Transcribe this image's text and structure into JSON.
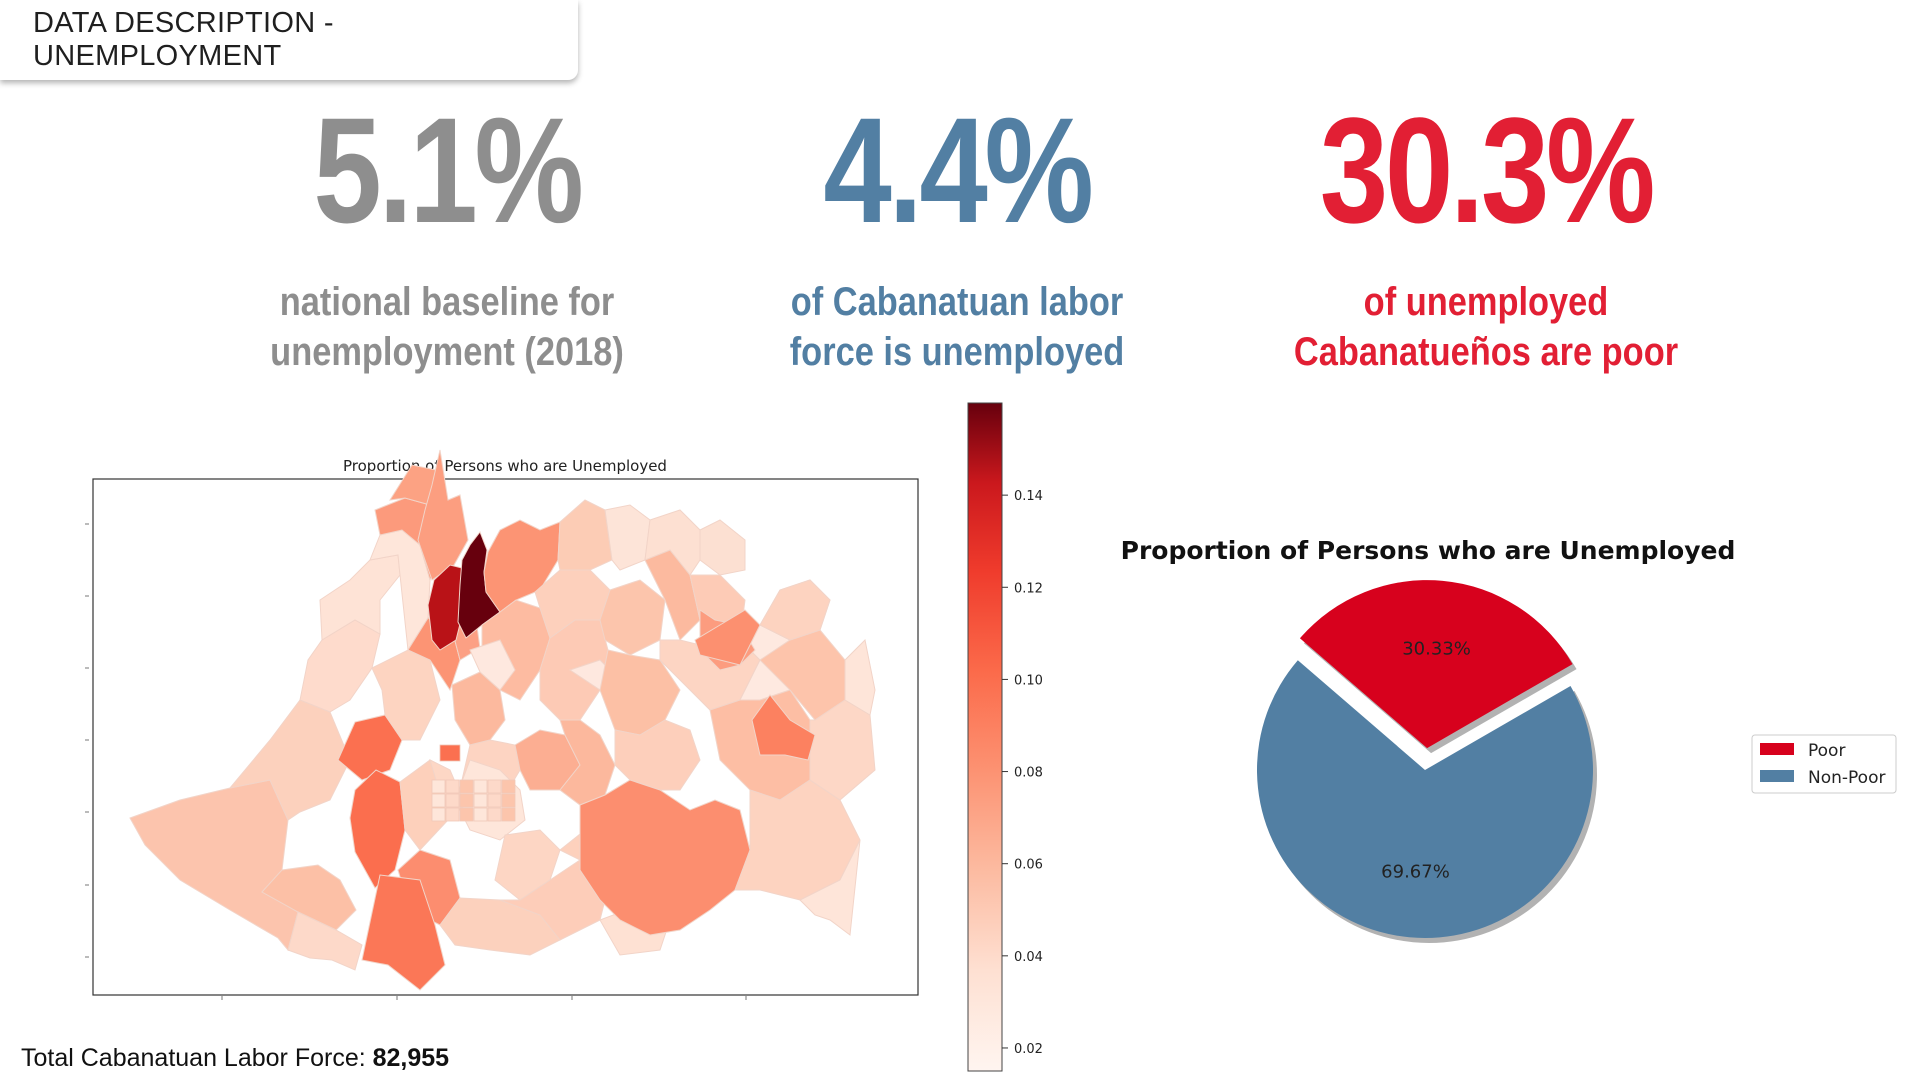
{
  "header": {
    "title": "DATA DESCRIPTION - UNEMPLOYMENT"
  },
  "stats": [
    {
      "value": "5.1%",
      "line1": "national baseline for",
      "line2": "unemployment (2018)",
      "color": "#8e8e8e"
    },
    {
      "value": "4.4%",
      "line1": "of Cabanatuan labor",
      "line2": "force is unemployed",
      "color": "#527fa3"
    },
    {
      "value": "30.3%",
      "line1": "of unemployed",
      "line2": "Cabanatueños are poor",
      "color": "#e21f34"
    }
  ],
  "footer": {
    "label": "Total Cabanatuan Labor Force: ",
    "value": "82,955"
  },
  "chart_data": [
    {
      "type": "heatmap",
      "title": "Proportion of Persons who are Unemployed",
      "colormap": "Reds",
      "colorbar": {
        "min": 0.015,
        "max": 0.16,
        "ticks": [
          "0.02",
          "0.04",
          "0.06",
          "0.08",
          "0.10",
          "0.12",
          "0.14"
        ]
      }
    },
    {
      "type": "pie",
      "title": "Proportion of Persons who are Unemployed",
      "slices": [
        {
          "label": "Poor",
          "value": 30.33,
          "display": "30.33%",
          "color": "#d7011d",
          "explode": true
        },
        {
          "label": "Non-Poor",
          "value": 69.67,
          "display": "69.67%",
          "color": "#527fa3",
          "explode": false
        }
      ],
      "start_angle_deg": 30,
      "legend_position": "right"
    }
  ]
}
